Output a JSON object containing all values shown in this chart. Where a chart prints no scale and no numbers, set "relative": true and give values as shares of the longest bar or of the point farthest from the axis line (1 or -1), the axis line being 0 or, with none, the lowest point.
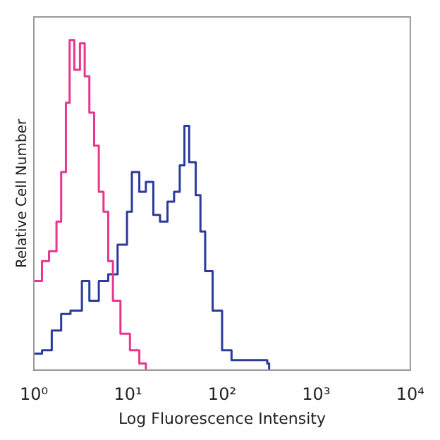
{
  "chart_data": {
    "type": "step",
    "xlabel": "Log Fluorescence Intensity",
    "ylabel": "Relative Cell Number",
    "relative": true,
    "log": "x",
    "grid": false,
    "xlim": [
      1,
      10000
    ],
    "xticks": [
      {
        "value": 1,
        "label": "10⁰"
      },
      {
        "value": 10,
        "label": "10¹"
      },
      {
        "value": 100,
        "label": "10²"
      },
      {
        "value": 1000,
        "label": "10³"
      },
      {
        "value": 10000,
        "label": "10⁴"
      }
    ],
    "series": [
      {
        "color": "#e8368f",
        "x": [
          1,
          1.22,
          1.45,
          1.74,
          1.95,
          2.19,
          2.4,
          2.69,
          3.09,
          3.47,
          3.89,
          4.37,
          4.9,
          5.5,
          6.17,
          6.92,
          8.32,
          10.5,
          13.2,
          15.5
        ],
        "values": [
          0.27,
          0.33,
          0.36,
          0.45,
          0.6,
          0.81,
          1,
          0.91,
          0.99,
          0.89,
          0.78,
          0.68,
          0.54,
          0.48,
          0.33,
          0.21,
          0.11,
          0.06,
          0.02,
          0
        ]
      },
      {
        "color": "#2b3a9c",
        "x": [
          1,
          1.22,
          1.55,
          1.95,
          2.45,
          3.24,
          3.89,
          4.9,
          6.17,
          7.76,
          9.77,
          11,
          13.2,
          15.5,
          18.6,
          21.9,
          26.3,
          30.9,
          35.5,
          39.8,
          44.7,
          52.5,
          58.9,
          66.1,
          79.4,
          100,
          126,
          158,
          302,
          316
        ],
        "values": [
          0.05,
          0.06,
          0.12,
          0.17,
          0.18,
          0.27,
          0.21,
          0.27,
          0.29,
          0.38,
          0.48,
          0.6,
          0.54,
          0.57,
          0.47,
          0.45,
          0.51,
          0.54,
          0.62,
          0.74,
          0.63,
          0.53,
          0.42,
          0.3,
          0.18,
          0.06,
          0.03,
          0.03,
          0.02,
          0
        ]
      }
    ]
  }
}
